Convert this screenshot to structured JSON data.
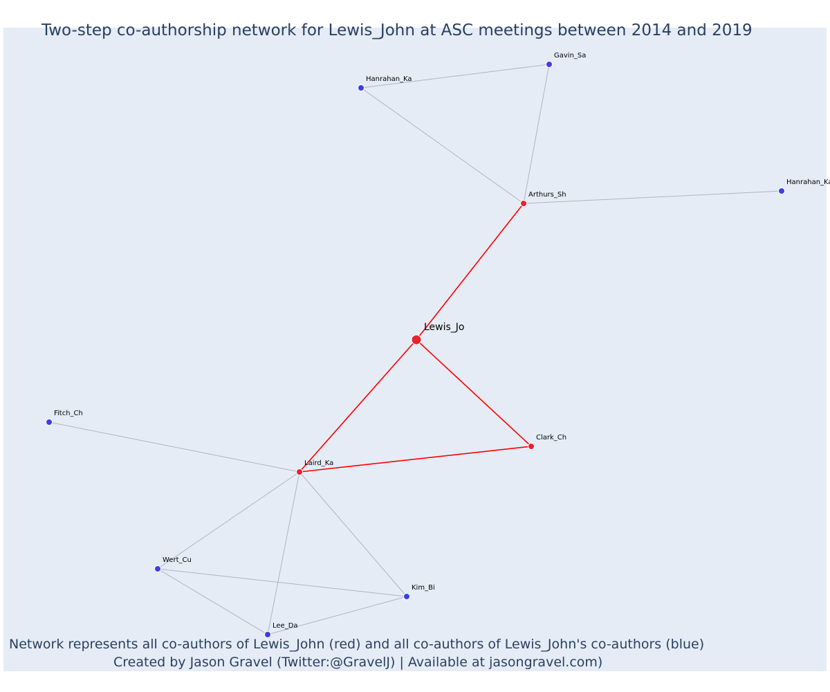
{
  "title": "Two-step co-authorship network for Lewis_John at ASC meetings between 2014 and 2019",
  "captions": [
    "Network represents all co-authors of Lewis_John (red) and all co-authors of Lewis_John's co-authors (blue)",
    "Created by Jason Gravel (Twitter:@GravelJ) | Available at jasongravel.com)"
  ],
  "colors": {
    "plot_background": "#e5ecf6",
    "first_step": "#e8222c",
    "second_step": "#3d3ee6",
    "first_step_edge": "#ff0000",
    "second_step_edge": "#b0b3c4",
    "text": "#2a3f5f"
  },
  "chart_data": {
    "type": "network",
    "nodes": [
      {
        "id": "Lewis_Jo",
        "label": "Lewis_Jo",
        "group": "ego"
      },
      {
        "id": "Arthurs_Sh",
        "label": "Arthurs_Sh",
        "group": "co-author"
      },
      {
        "id": "Laird_Ka",
        "label": "Laird_Ka",
        "group": "co-author"
      },
      {
        "id": "Clark_Ch",
        "label": "Clark_Ch",
        "group": "co-author"
      },
      {
        "id": "Gavin_Sa",
        "label": "Gavin_Sa",
        "group": "second-step"
      },
      {
        "id": "Hanrahan_Ka_1",
        "label": "Hanrahan_Ka",
        "group": "second-step"
      },
      {
        "id": "Hanrahan_Ka_2",
        "label": "Hanrahan_Ka",
        "group": "second-step"
      },
      {
        "id": "Fitch_Ch",
        "label": "Fitch_Ch",
        "group": "second-step"
      },
      {
        "id": "Wert_Cu",
        "label": "Wert_Cu",
        "group": "second-step"
      },
      {
        "id": "Kim_Bi",
        "label": "Kim_Bi",
        "group": "second-step"
      },
      {
        "id": "Lee_Da",
        "label": "Lee_Da",
        "group": "second-step"
      }
    ],
    "edges": [
      {
        "source": "Lewis_Jo",
        "target": "Arthurs_Sh",
        "type": "first"
      },
      {
        "source": "Lewis_Jo",
        "target": "Laird_Ka",
        "type": "first"
      },
      {
        "source": "Lewis_Jo",
        "target": "Clark_Ch",
        "type": "first"
      },
      {
        "source": "Laird_Ka",
        "target": "Clark_Ch",
        "type": "first"
      },
      {
        "source": "Arthurs_Sh",
        "target": "Gavin_Sa",
        "type": "second"
      },
      {
        "source": "Arthurs_Sh",
        "target": "Hanrahan_Ka_1",
        "type": "second"
      },
      {
        "source": "Gavin_Sa",
        "target": "Hanrahan_Ka_1",
        "type": "second"
      },
      {
        "source": "Arthurs_Sh",
        "target": "Hanrahan_Ka_2",
        "type": "second"
      },
      {
        "source": "Laird_Ka",
        "target": "Fitch_Ch",
        "type": "second"
      },
      {
        "source": "Laird_Ka",
        "target": "Wert_Cu",
        "type": "second"
      },
      {
        "source": "Laird_Ka",
        "target": "Kim_Bi",
        "type": "second"
      },
      {
        "source": "Laird_Ka",
        "target": "Lee_Da",
        "type": "second"
      },
      {
        "source": "Wert_Cu",
        "target": "Kim_Bi",
        "type": "second"
      },
      {
        "source": "Wert_Cu",
        "target": "Lee_Da",
        "type": "second"
      },
      {
        "source": "Kim_Bi",
        "target": "Lee_Da",
        "type": "second"
      }
    ]
  }
}
